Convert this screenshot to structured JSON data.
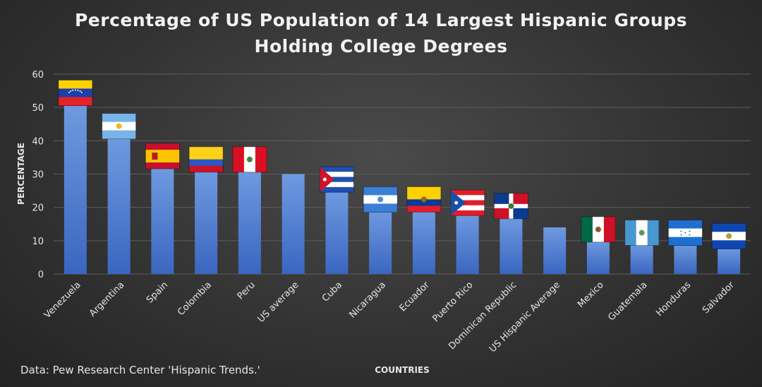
{
  "chart_data": {
    "type": "bar",
    "title": "Percentage of US Population of 14 Largest Hispanic Groups Holding College Degrees",
    "title_lines": [
      "Percentage of US Population of 14 Largest Hispanic Groups",
      "Holding College Degrees"
    ],
    "xlabel": "COUNTRIES",
    "ylabel": "PERCENTAGE",
    "source": "Data: Pew Research Center 'Hispanic Trends.'",
    "ylim": [
      0,
      60
    ],
    "yticks": [
      0,
      10,
      20,
      30,
      40,
      50,
      60
    ],
    "grid": true,
    "categories": [
      "Venezuela",
      "Argentina",
      "Spain",
      "Colombia",
      "Peru",
      "US average",
      "Cuba",
      "Nicaragua",
      "Ecuador",
      "Puerto Rico",
      "Dominican Republic",
      "US Hispanic Average",
      "Mexico",
      "Guatemala",
      "Honduras",
      "Salvador"
    ],
    "values": [
      51,
      41,
      32,
      31,
      31,
      30,
      25,
      19,
      19,
      18,
      17,
      14,
      10,
      9,
      9,
      8
    ],
    "flags": [
      "venezuela",
      "argentina",
      "spain",
      "colombia",
      "peru",
      null,
      "cuba",
      "nicaragua",
      "ecuador",
      "puerto-rico",
      "dominican-republic",
      null,
      "mexico",
      "guatemala",
      "honduras",
      "el-salvador"
    ],
    "colors": {
      "bar_top": "#6f9ae0",
      "bar_bottom": "#3a66c0",
      "grid": "#5c5c5c",
      "text": "#e6e6e6"
    }
  }
}
